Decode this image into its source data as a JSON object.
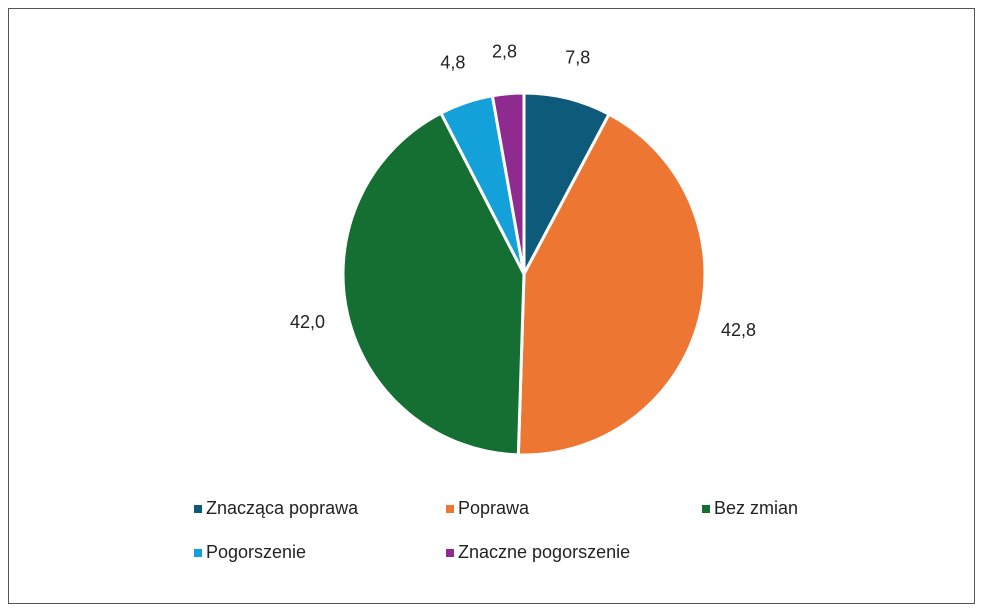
{
  "chart_data": {
    "type": "pie",
    "categories": [
      "Znacząca poprawa",
      "Poprawa",
      "Bez zmian",
      "Pogorszenie",
      "Znaczne pogorszenie"
    ],
    "values": [
      7.8,
      42.8,
      42.0,
      4.8,
      2.8
    ],
    "value_labels": [
      "7,8",
      "42,8",
      "42,0",
      "4,8",
      "2,8"
    ],
    "colors": [
      "#0e5a7a",
      "#ee7633",
      "#156e32",
      "#14a0d9",
      "#8f2b8e"
    ],
    "legend": "bottom"
  }
}
